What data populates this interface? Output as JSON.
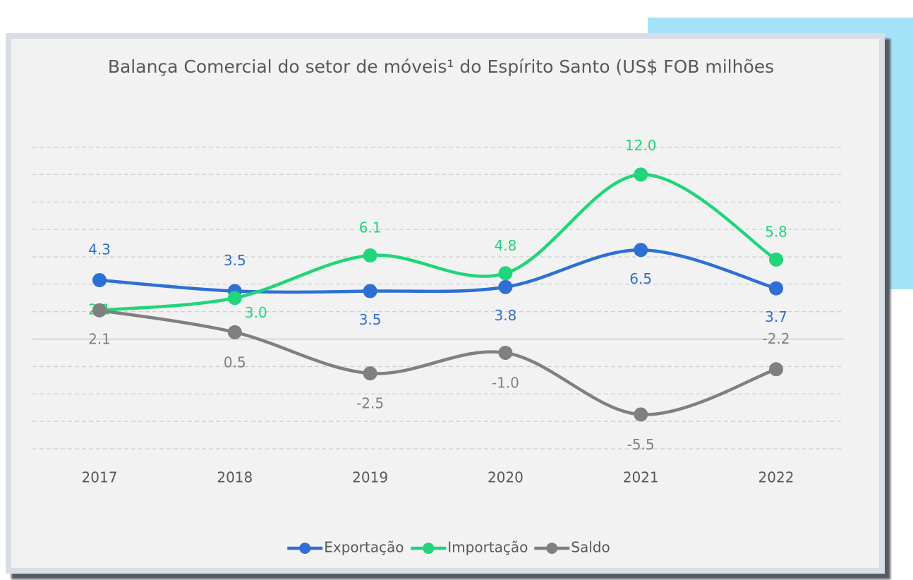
{
  "chart_data": {
    "type": "line",
    "title": "Balança Comercial do setor de móveis¹ do Espírito Santo (US$ FOB milhões",
    "categories": [
      "2017",
      "2018",
      "2019",
      "2020",
      "2021",
      "2022"
    ],
    "series": [
      {
        "name": "Exportação",
        "color": "#2e6fd6",
        "values": [
          4.3,
          3.5,
          3.5,
          3.8,
          6.5,
          3.7
        ],
        "value_labels": [
          "4.3",
          "3.5",
          "3.5",
          "3.8",
          "6.5",
          "3.7"
        ]
      },
      {
        "name": "Importação",
        "color": "#1fd67a",
        "values": [
          2.1,
          3.0,
          6.1,
          4.8,
          12.0,
          5.8
        ],
        "value_labels": [
          "2.1",
          "3.0",
          "6.1",
          "4.8",
          "12.0",
          "5.8"
        ]
      },
      {
        "name": "Saldo",
        "color": "#808080",
        "values": [
          2.1,
          0.5,
          -2.5,
          -1.0,
          -5.5,
          -2.2
        ],
        "value_labels": [
          "2.1",
          "0.5",
          "-2.5",
          "-1.0",
          "-5.5",
          "-2.2"
        ]
      }
    ],
    "ylim": [
      -8,
      14
    ],
    "yticks": [
      -8,
      -6,
      -4,
      -2,
      0,
      2,
      4,
      6,
      8,
      10,
      12,
      14
    ],
    "grid": true,
    "legend": "bottom"
  }
}
